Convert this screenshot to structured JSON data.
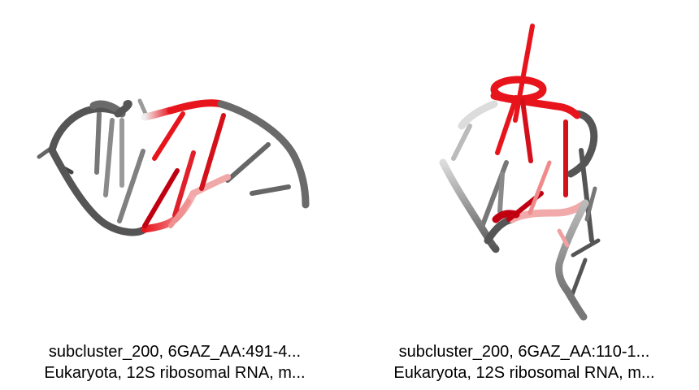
{
  "colors": {
    "backbone_dark": "#555555",
    "backbone_mid": "#808080",
    "backbone_light": "#c8c8c8",
    "highlight": "#e8141c",
    "highlight_dark": "#b00010",
    "highlight_light": "#f0a0a0"
  },
  "panels": [
    {
      "caption_line1": "subcluster_200, 6GAZ_AA:491-4...",
      "caption_line2": "Eukaryota, 12S ribosomal RNA, m..."
    },
    {
      "caption_line1": "subcluster_200, 6GAZ_AA:110-1...",
      "caption_line2": "Eukaryota, 12S ribosomal RNA, m..."
    }
  ]
}
